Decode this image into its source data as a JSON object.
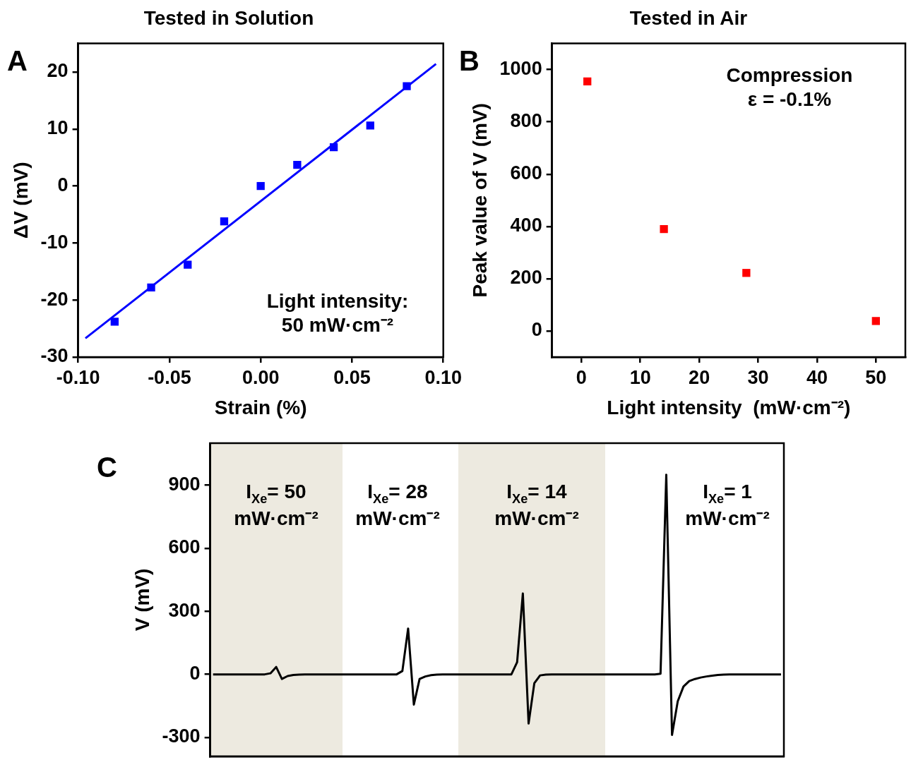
{
  "chart_data": [
    {
      "type": "scatter",
      "title": "Tested in Solution",
      "xlabel": "Strain (%)",
      "ylabel": "ΔV (mV)",
      "xlim": [
        -0.1,
        0.1
      ],
      "xticks": [
        {
          "value": -0.1,
          "label": "-0.10"
        },
        {
          "value": -0.05,
          "label": "-0.05"
        },
        {
          "value": 0,
          "label": "0.00"
        },
        {
          "value": 0.05,
          "label": "0.05"
        },
        {
          "value": 0.1,
          "label": "0.10"
        }
      ],
      "ylim": [
        -30,
        25
      ],
      "yticks": [
        -30,
        -20,
        -10,
        0,
        10,
        20
      ],
      "series": [
        {
          "marker": "square",
          "color": "#0000ff",
          "x": [
            -0.08,
            -0.06,
            -0.04,
            -0.02,
            0,
            0.02,
            0.04,
            0.06,
            0.08
          ],
          "values": [
            -23.8,
            -17.8,
            -13.8,
            -6.2,
            0,
            3.7,
            6.8,
            10.6,
            17.5
          ]
        },
        {
          "type": "line",
          "marker": "none",
          "color": "#0000ff",
          "x": [
            -0.096,
            0.096
          ],
          "values": [
            -26.7,
            21.4
          ]
        }
      ],
      "annotations": [
        "A",
        "Light intensity:\n50 mW·cm⁻²"
      ]
    },
    {
      "type": "scatter",
      "title": "Tested in Air",
      "xlabel": "Light intensity  (mW·cm⁻²)",
      "ylabel": "Peak value of V (mV)",
      "xlim": [
        -5,
        55
      ],
      "xticks": [
        0,
        10,
        20,
        30,
        40,
        50
      ],
      "ylim": [
        -100,
        1100
      ],
      "yticks": [
        0,
        200,
        400,
        600,
        800,
        1000
      ],
      "series": [
        {
          "marker": "square",
          "color": "#ff0000",
          "x": [
            1,
            14,
            28,
            50
          ],
          "values": [
            955,
            390,
            222,
            38
          ]
        }
      ],
      "annotations": [
        "B",
        "Compression\nε = -0.1%"
      ]
    },
    {
      "type": "line",
      "ylabel": "V (mV)",
      "tick_labels": "y",
      "categories": [
        null,
        null,
        null,
        null,
        null,
        null,
        null,
        null,
        null,
        null,
        null,
        null,
        null,
        null,
        null,
        null,
        null,
        null,
        null,
        null,
        null,
        null,
        null,
        null,
        null,
        null,
        null,
        null,
        null,
        null,
        null,
        null,
        null,
        null,
        null,
        null,
        null,
        null,
        null,
        null,
        null,
        null,
        null,
        null,
        null,
        null,
        null,
        null,
        null,
        null,
        null,
        null,
        null,
        null,
        null,
        null,
        null,
        null,
        null,
        null,
        null,
        null,
        null,
        null,
        null,
        null,
        null,
        null,
        null,
        null,
        null,
        null,
        null,
        null,
        null,
        null,
        null,
        null,
        null,
        null,
        null,
        null,
        null,
        null,
        null,
        null,
        null,
        null,
        null,
        null,
        null,
        null,
        null,
        null,
        null,
        null,
        null,
        null,
        null,
        null
      ],
      "ylim": [
        -390,
        1100
      ],
      "yticks": [
        -300,
        0,
        300,
        600,
        900
      ],
      "series": [
        {
          "marker": "none",
          "color": "#000000",
          "values": [
            0,
            0,
            0,
            0,
            0,
            0,
            0,
            0,
            0,
            0,
            5,
            35,
            -22,
            -8,
            -3,
            -1,
            0,
            0,
            0,
            0,
            0,
            0,
            0,
            0,
            0,
            0,
            0,
            0,
            0,
            0,
            0,
            0,
            0,
            16,
            218,
            -144,
            -22,
            -10,
            -4,
            -1,
            0,
            0,
            0,
            0,
            0,
            0,
            0,
            0,
            0,
            0,
            0,
            0,
            0,
            58,
            385,
            -234,
            -42,
            -5,
            -1,
            0,
            0,
            0,
            0,
            0,
            0,
            0,
            0,
            0,
            0,
            0,
            0,
            0,
            0,
            0,
            0,
            0,
            0,
            0,
            3,
            950,
            -288,
            -128,
            -58,
            -32,
            -22,
            -15,
            -10,
            -6,
            -3,
            -1,
            0,
            0,
            0,
            0,
            0,
            0,
            0,
            0,
            0,
            0
          ]
        }
      ],
      "annotations": [
        "C",
        "I$_{Xe}$= 50\nmW·cm⁻²",
        "I$_{Xe}$= 28\nmW·cm⁻²",
        "I$_{Xe}$= 14\nmW·cm⁻²",
        "I$_{Xe}$= 1\nmW·cm⁻²"
      ]
    }
  ]
}
